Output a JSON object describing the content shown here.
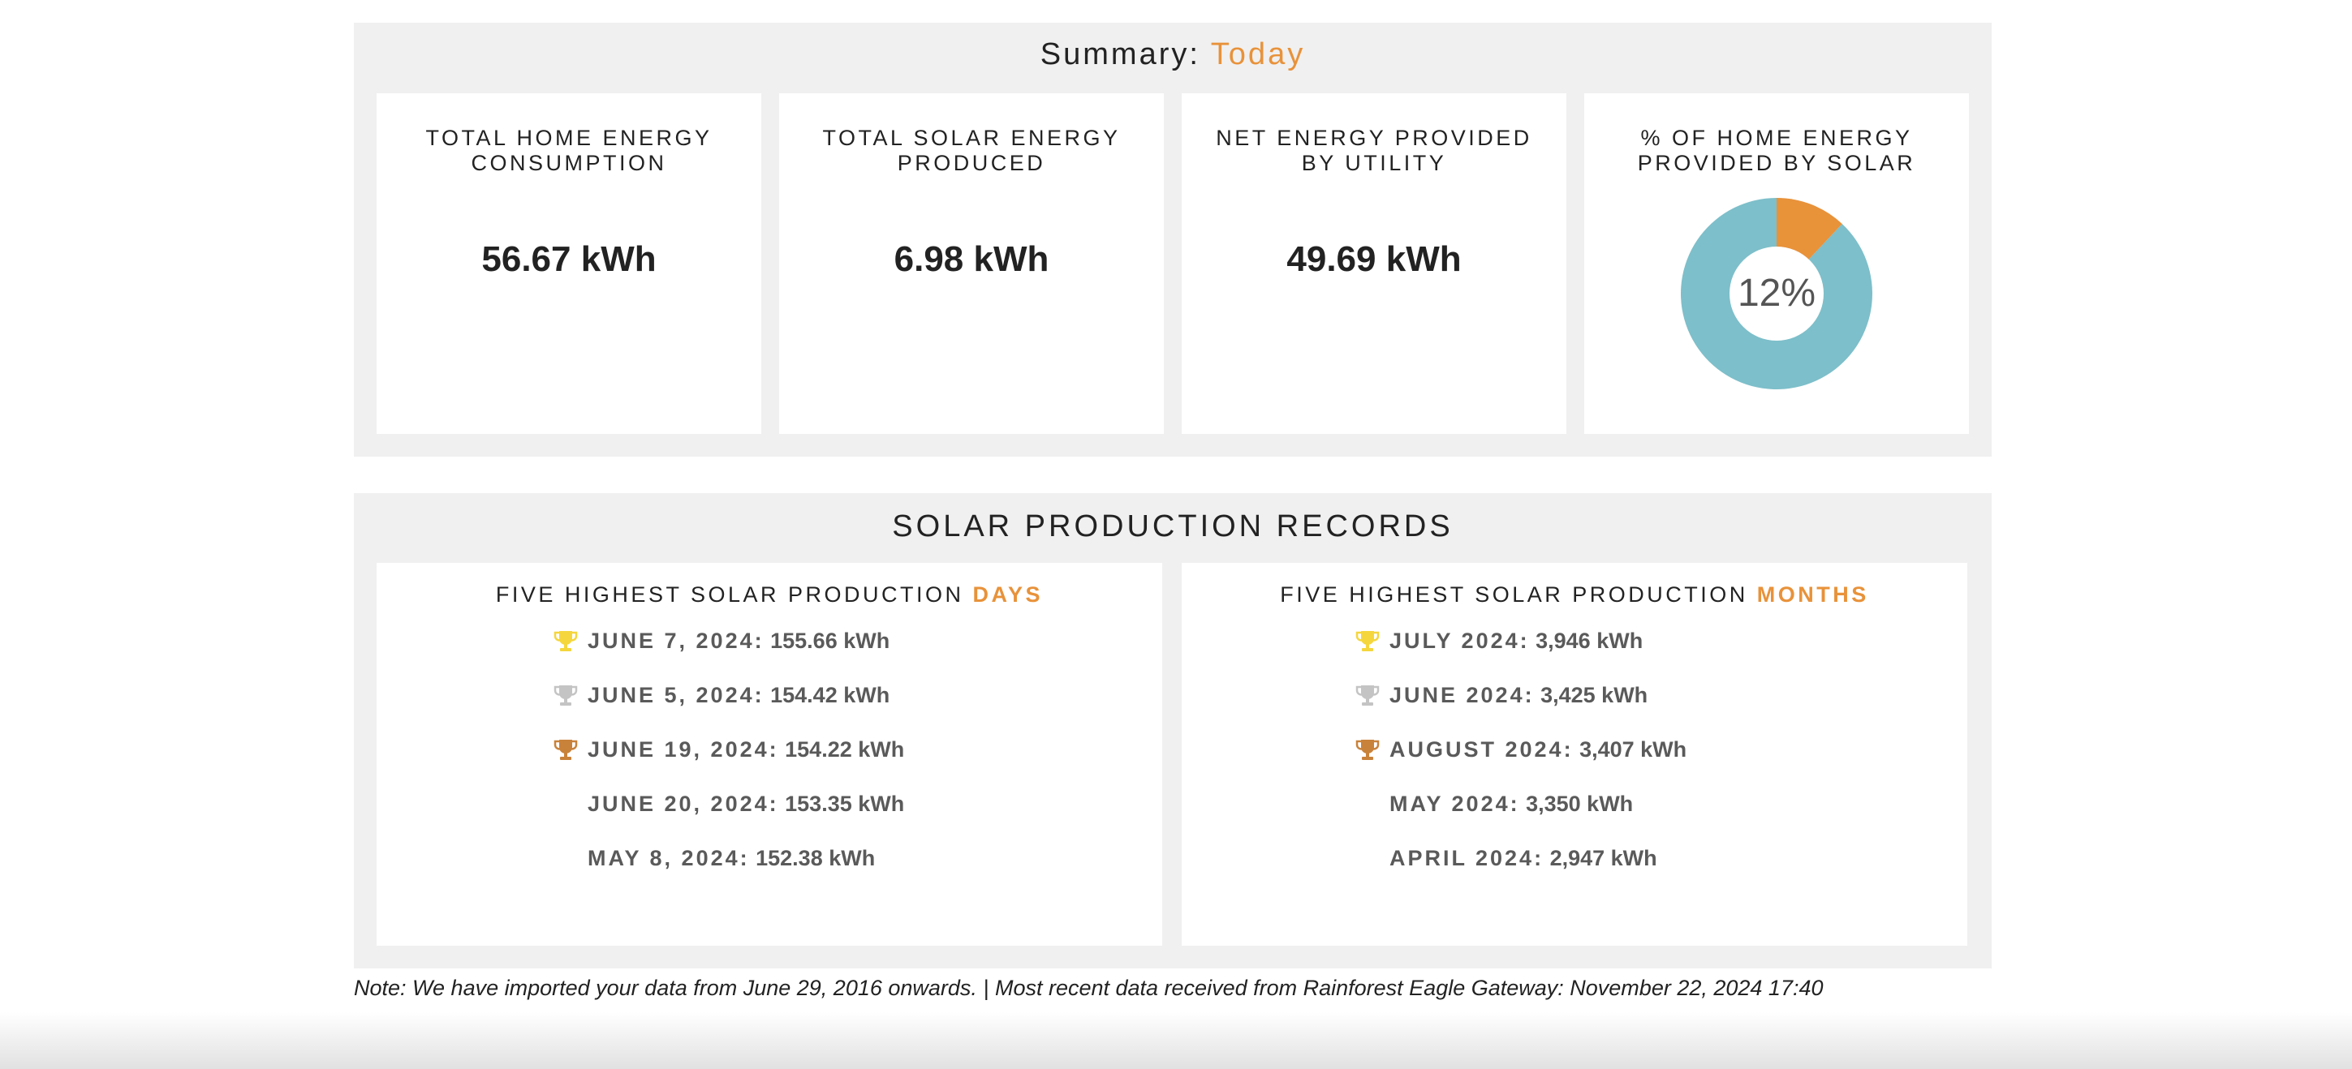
{
  "summary": {
    "title_prefix": "Summary:",
    "title_accent": "Today",
    "cards": [
      {
        "title": "TOTAL HOME ENERGY CONSUMPTION",
        "value": "56.67 kWh"
      },
      {
        "title": "TOTAL SOLAR ENERGY PRODUCED",
        "value": "6.98 kWh"
      },
      {
        "title": "NET ENERGY PROVIDED BY UTILITY",
        "value": "49.69 kWh"
      }
    ],
    "solar_share": {
      "title": "% OF HOME ENERGY PROVIDED BY SOLAR",
      "label": "12%",
      "percent": 12,
      "colors": {
        "solar": "#e8923a",
        "utility": "#7dbfca"
      }
    }
  },
  "records": {
    "title": "SOLAR PRODUCTION RECORDS",
    "days": {
      "title_prefix": "FIVE HIGHEST SOLAR PRODUCTION",
      "title_accent": "DAYS",
      "items": [
        {
          "date": "JUNE 7, 2024:",
          "value": "155.66 kWh",
          "trophy": "gold-trophy-icon"
        },
        {
          "date": "JUNE 5, 2024:",
          "value": "154.42 kWh",
          "trophy": "silver-trophy-icon"
        },
        {
          "date": "JUNE 19, 2024:",
          "value": "154.22 kWh",
          "trophy": "bronze-trophy-icon"
        },
        {
          "date": "JUNE 20, 2024:",
          "value": "153.35 kWh",
          "trophy": ""
        },
        {
          "date": "MAY 8, 2024:",
          "value": "152.38 kWh",
          "trophy": ""
        }
      ]
    },
    "months": {
      "title_prefix": "FIVE HIGHEST SOLAR PRODUCTION",
      "title_accent": "MONTHS",
      "items": [
        {
          "date": "JULY 2024:",
          "value": "3,946 kWh",
          "trophy": "gold-trophy-icon"
        },
        {
          "date": "JUNE 2024:",
          "value": "3,425 kWh",
          "trophy": "silver-trophy-icon"
        },
        {
          "date": "AUGUST 2024:",
          "value": "3,407 kWh",
          "trophy": "bronze-trophy-icon"
        },
        {
          "date": "MAY 2024:",
          "value": "3,350 kWh",
          "trophy": ""
        },
        {
          "date": "APRIL 2024:",
          "value": "2,947 kWh",
          "trophy": ""
        }
      ]
    },
    "trophy_colors": {
      "gold": "#f5d63d",
      "silver": "#c4c4c4",
      "bronze": "#c9823a"
    }
  },
  "note": "Note: We have imported your data from June 29, 2016 onwards. | Most recent data received from Rainforest Eagle Gateway: November 22, 2024 17:40",
  "colors": {
    "accent": "#e8923a",
    "panel_bg": "#f0f0f0"
  }
}
